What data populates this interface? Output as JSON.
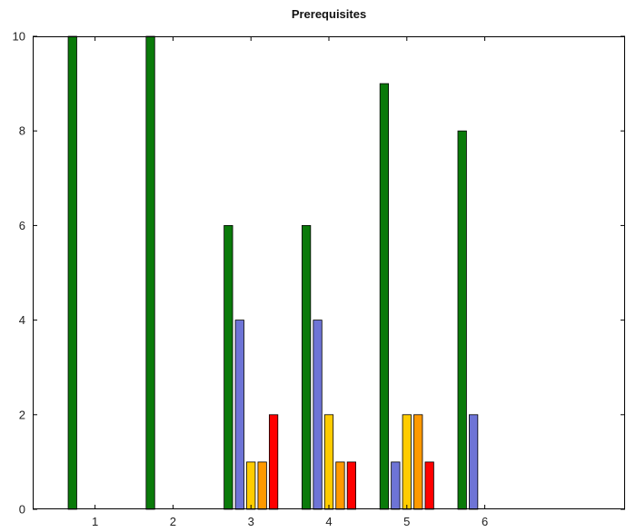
{
  "chart_data": {
    "type": "bar",
    "title": "Prerequisites",
    "xlabel": "",
    "ylabel": "",
    "categories": [
      "1",
      "2",
      "3",
      "4",
      "5",
      "6"
    ],
    "ylim": [
      0,
      10
    ],
    "yticks": [
      0,
      2,
      4,
      6,
      8,
      10
    ],
    "xlim": [
      0.2,
      7.8
    ],
    "grid": false,
    "legend": "none",
    "series": [
      {
        "color": "#0a7a0a",
        "values": [
          10,
          10,
          6,
          6,
          9,
          8
        ]
      },
      {
        "color": "#6e74d6",
        "values": [
          0,
          0,
          4,
          4,
          1,
          2
        ]
      },
      {
        "color": "#ffcc00",
        "values": [
          0,
          0,
          1,
          2,
          2,
          0
        ]
      },
      {
        "color": "#ff9900",
        "values": [
          0,
          0,
          1,
          1,
          2,
          0
        ]
      },
      {
        "color": "#ff0000",
        "values": [
          0,
          0,
          2,
          1,
          1,
          0
        ]
      }
    ]
  }
}
